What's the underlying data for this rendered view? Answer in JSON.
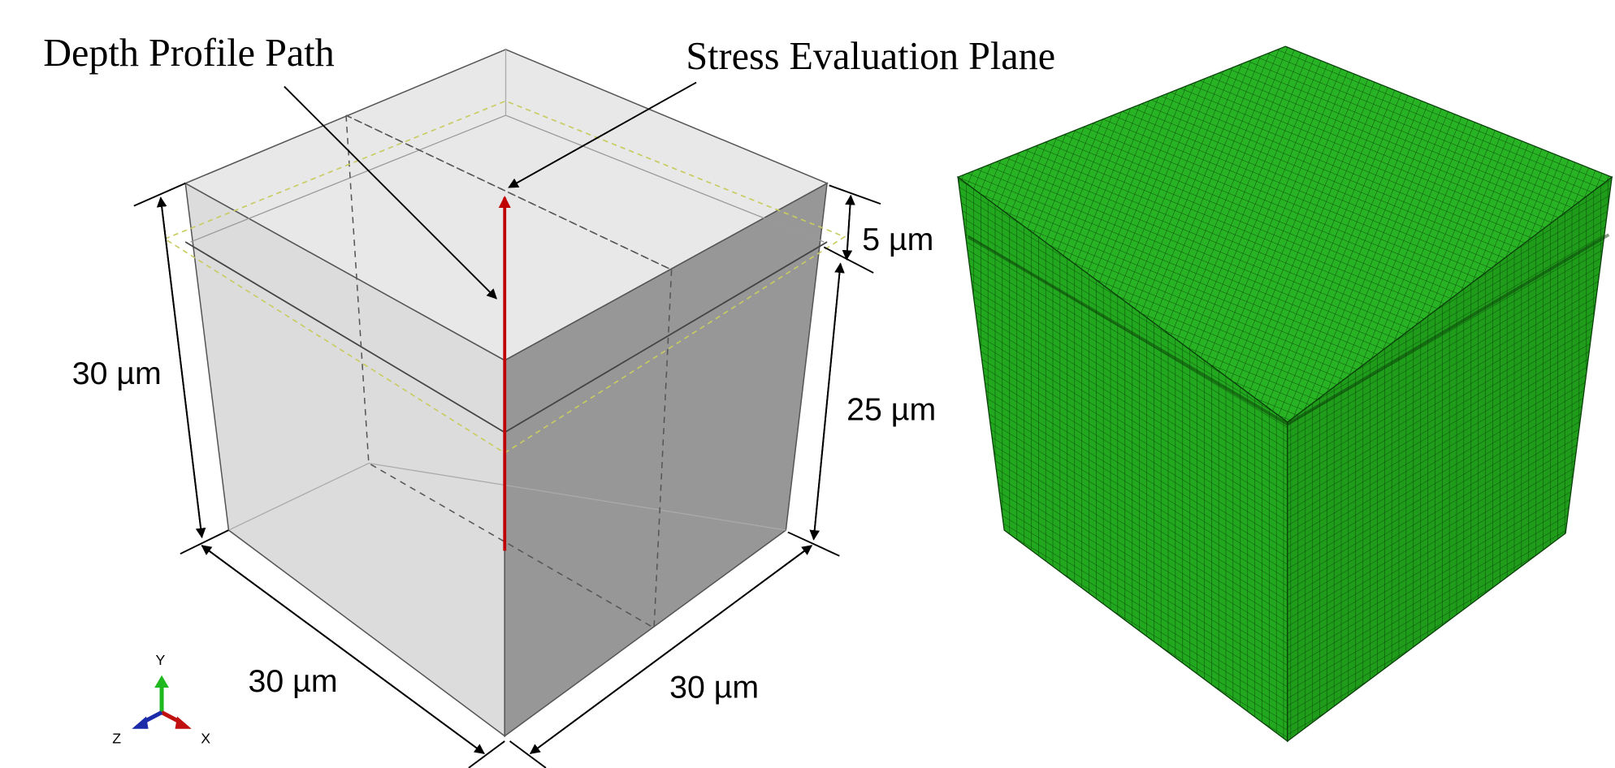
{
  "labels": {
    "depth_profile_path": "Depth Profile Path",
    "stress_evaluation_plane": "Stress Evaluation Plane"
  },
  "dimensions": {
    "height_total": "30 µm",
    "layer_top": "5 µm",
    "layer_bottom": "25 µm",
    "width_left": "30 µm",
    "width_right": "30 µm"
  },
  "axes": {
    "y": "Y",
    "z": "Z",
    "x": "X"
  }
}
